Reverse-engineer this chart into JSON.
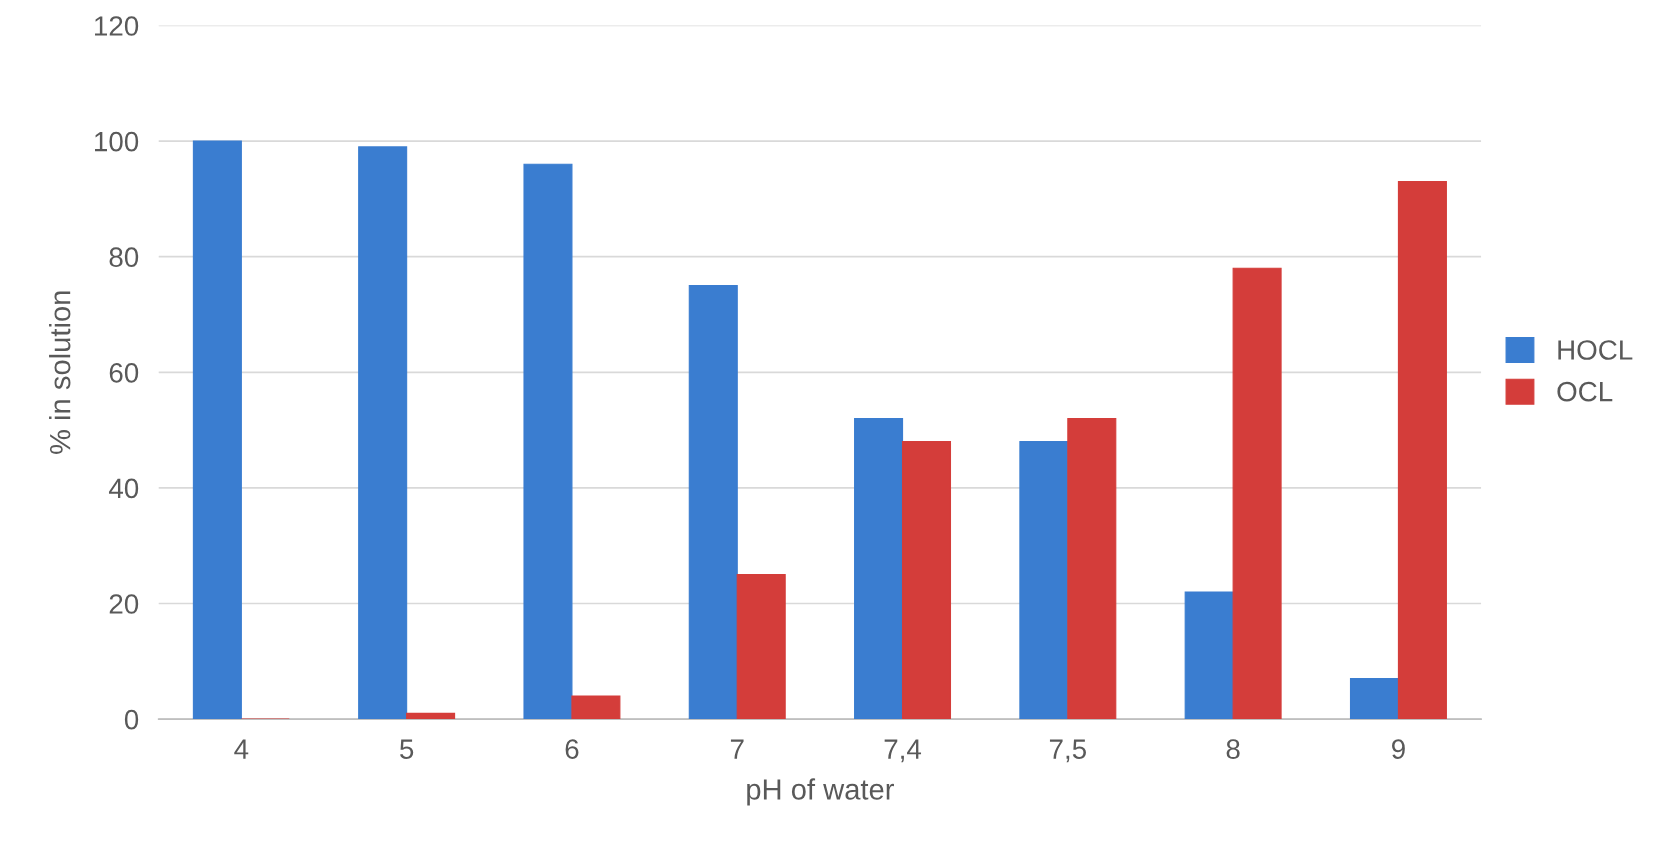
{
  "chart_data": {
    "type": "bar",
    "xlabel": "pH of water",
    "ylabel": "% in solution",
    "categories": [
      "4",
      "5",
      "6",
      "7",
      "7,4",
      "7,5",
      "8",
      "9"
    ],
    "series": [
      {
        "name": "HOCL",
        "color": "#3a7dd0",
        "values": [
          100,
          99,
          96,
          75,
          52,
          48,
          22,
          7
        ]
      },
      {
        "name": "OCL",
        "color": "#d43d3a",
        "values": [
          0,
          1,
          4,
          25,
          48,
          52,
          78,
          93
        ]
      }
    ],
    "ylim": [
      0,
      120
    ],
    "yticks": [
      0,
      20,
      40,
      60,
      80,
      100,
      120
    ],
    "grid": "y",
    "legend": "right"
  }
}
